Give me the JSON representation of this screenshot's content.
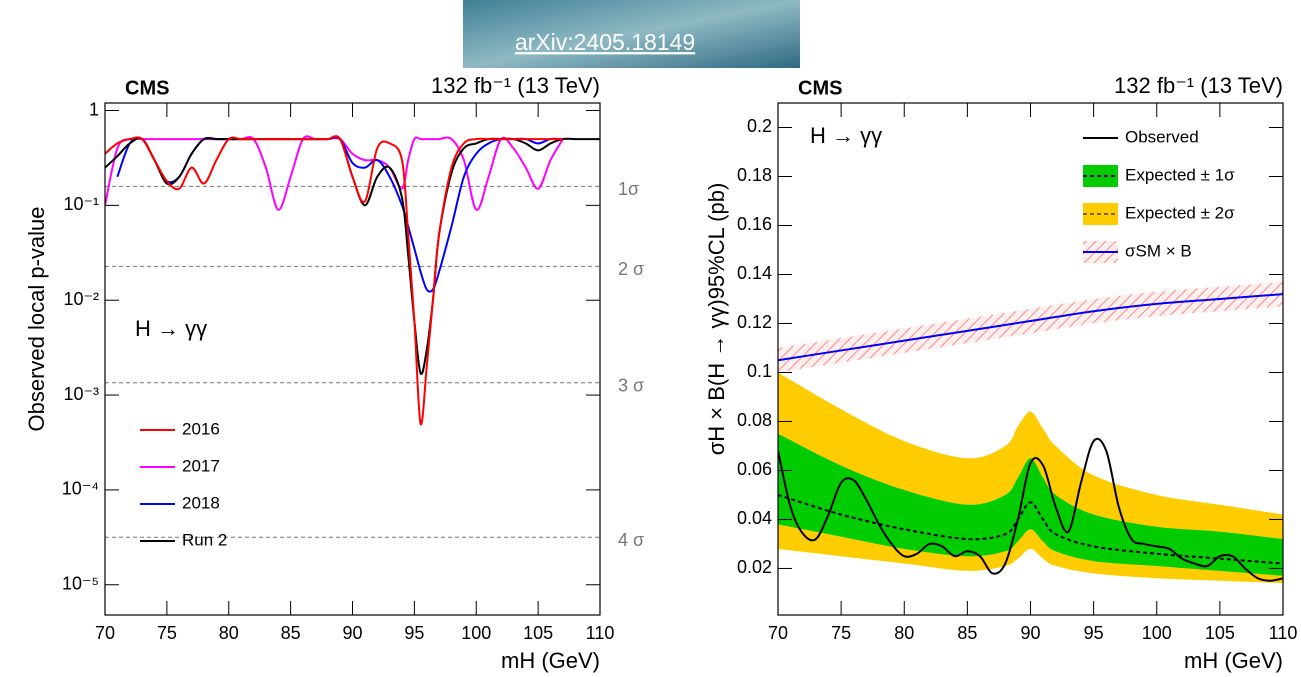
{
  "banner": {
    "text": "arXiv:2405.18149"
  },
  "chart_data": [
    {
      "type": "line",
      "log_y": true,
      "experiment": "CMS",
      "luminosity": "132 fb⁻¹ (13 TeV)",
      "x_label": "mH (GeV)",
      "y_label": "Observed local p-value",
      "annotation": "H → γγ",
      "legend": "lower left",
      "x": [
        70,
        71,
        72,
        73,
        74,
        75,
        76,
        77,
        78,
        79,
        80,
        81,
        82,
        83,
        84,
        85,
        86,
        87,
        88,
        89,
        90,
        91,
        92,
        93,
        94,
        94.5,
        95,
        95.5,
        96,
        96.5,
        97,
        98,
        99,
        100,
        101,
        102,
        103,
        104,
        105,
        106,
        107,
        108,
        109,
        110
      ],
      "xlim": [
        70,
        110
      ],
      "xticks": [
        70,
        75,
        80,
        85,
        90,
        95,
        100,
        105,
        110
      ],
      "ylim": [
        4.8e-06,
        1.2
      ],
      "yticks": [
        {
          "value": 1e-05,
          "label": "10⁻⁵"
        },
        {
          "value": 0.0001,
          "label": "10⁻⁴"
        },
        {
          "value": 0.001,
          "label": "10⁻³"
        },
        {
          "value": 0.01,
          "label": "10⁻²"
        },
        {
          "value": 0.1,
          "label": "10⁻¹"
        },
        1
      ],
      "reference_lines": [
        {
          "value": 0.1587,
          "label": "1σ"
        },
        {
          "value": 0.02275,
          "label": "2 σ"
        },
        {
          "value": 0.00135,
          "label": "3 σ"
        },
        {
          "value": 3.17e-05,
          "label": "4 σ"
        }
      ],
      "series": [
        {
          "name": "2016",
          "color": "#ff0000",
          "values": [
            0.35,
            0.45,
            0.5,
            0.5,
            0.3,
            0.18,
            0.15,
            0.25,
            0.17,
            0.3,
            0.5,
            0.5,
            0.5,
            0.5,
            0.5,
            0.5,
            0.5,
            0.5,
            0.5,
            0.5,
            0.2,
            0.11,
            0.4,
            0.45,
            0.3,
            0.05,
            0.006,
            0.0005,
            0.002,
            0.01,
            0.05,
            0.25,
            0.45,
            0.5,
            0.5,
            0.5,
            0.5,
            0.5,
            0.5,
            0.5,
            0.5,
            null,
            null,
            null
          ]
        },
        {
          "name": "2017",
          "color": "#ff00ff",
          "values": [
            0.1,
            0.4,
            0.5,
            0.5,
            0.5,
            0.5,
            0.5,
            0.5,
            0.5,
            0.5,
            0.5,
            0.5,
            0.5,
            0.25,
            0.09,
            0.2,
            0.5,
            0.5,
            0.5,
            0.5,
            0.35,
            0.3,
            0.3,
            0.25,
            0.15,
            0.3,
            0.5,
            0.5,
            0.5,
            0.5,
            0.5,
            0.5,
            0.3,
            0.09,
            0.2,
            0.5,
            0.4,
            0.25,
            0.15,
            0.3,
            0.5,
            null,
            null,
            null
          ]
        },
        {
          "name": "2018",
          "color": "#0000ff",
          "values": [
            null,
            0.2,
            0.45,
            0.5,
            0.3,
            0.18,
            0.2,
            0.35,
            0.5,
            0.5,
            0.5,
            0.5,
            0.5,
            0.5,
            0.5,
            0.5,
            0.5,
            0.5,
            0.5,
            0.5,
            0.28,
            0.25,
            0.3,
            0.2,
            0.1,
            0.06,
            0.035,
            0.02,
            0.013,
            0.013,
            0.02,
            0.06,
            0.2,
            0.35,
            0.45,
            0.5,
            0.5,
            0.5,
            0.45,
            0.5,
            0.5,
            null,
            null,
            null
          ]
        },
        {
          "name": "Run 2",
          "color": "#000000",
          "values": [
            0.25,
            0.33,
            0.45,
            0.5,
            0.3,
            0.17,
            0.2,
            0.35,
            0.5,
            0.5,
            0.5,
            0.5,
            0.5,
            0.5,
            0.5,
            0.5,
            0.5,
            0.5,
            0.5,
            0.5,
            0.2,
            0.1,
            0.2,
            0.25,
            0.12,
            0.03,
            0.006,
            0.0017,
            0.003,
            0.01,
            0.05,
            0.22,
            0.4,
            0.45,
            0.5,
            0.5,
            0.5,
            0.45,
            0.38,
            0.45,
            0.5,
            0.5,
            0.5,
            0.5
          ]
        }
      ]
    },
    {
      "type": "line",
      "log_y": false,
      "experiment": "CMS",
      "luminosity": "132 fb⁻¹ (13 TeV)",
      "x_label": "mH (GeV)",
      "y_label": "σH × B(H → γγ)95%CL (pb)",
      "annotation": "H → γγ",
      "legend": "upper right",
      "x": [
        70,
        71,
        72,
        73,
        74,
        75,
        76,
        77,
        78,
        79,
        80,
        81,
        82,
        83,
        84,
        85,
        86,
        87,
        88,
        89,
        90,
        91,
        92,
        93,
        94,
        95,
        96,
        97,
        98,
        99,
        100,
        101,
        102,
        103,
        104,
        105,
        106,
        107,
        108,
        109,
        110
      ],
      "xlim": [
        70,
        110
      ],
      "xticks": [
        70,
        75,
        80,
        85,
        90,
        95,
        100,
        105,
        110
      ],
      "ylim": [
        0.001,
        0.21
      ],
      "yticks": [
        0.02,
        0.04,
        0.06,
        0.08,
        0.1,
        0.12,
        0.14,
        0.16,
        0.18,
        0.2
      ],
      "series": [
        {
          "name": "Observed",
          "color": "#000000",
          "values": [
            0.068,
            0.045,
            0.034,
            0.032,
            0.042,
            0.055,
            0.056,
            0.048,
            0.038,
            0.03,
            0.025,
            0.026,
            0.03,
            0.029,
            0.025,
            0.027,
            0.025,
            0.018,
            0.022,
            0.04,
            0.063,
            0.062,
            0.045,
            0.035,
            0.055,
            0.072,
            0.068,
            0.045,
            0.032,
            0.03,
            0.029,
            0.028,
            0.024,
            0.022,
            0.021,
            0.025,
            0.025,
            0.02,
            0.016,
            0.015,
            0.016
          ]
        },
        {
          "name": "Expected ± 1σ",
          "color": "#00cc00",
          "line_color": "#000000",
          "dash": true,
          "x": [
            70,
            75,
            80,
            85,
            88,
            89,
            90,
            91,
            92,
            95,
            100,
            105,
            110
          ],
          "values": [
            0.05,
            0.042,
            0.036,
            0.032,
            0.034,
            0.04,
            0.047,
            0.04,
            0.034,
            0.029,
            0.026,
            0.024,
            0.022
          ],
          "lower": [
            0.038,
            0.033,
            0.028,
            0.025,
            0.027,
            0.031,
            0.036,
            0.031,
            0.027,
            0.023,
            0.021,
            0.019,
            0.017
          ],
          "upper": [
            0.075,
            0.062,
            0.052,
            0.046,
            0.05,
            0.057,
            0.065,
            0.057,
            0.05,
            0.042,
            0.037,
            0.035,
            0.032
          ]
        },
        {
          "name": "Expected ± 2σ",
          "color": "#ffcc00",
          "x": [
            70,
            75,
            80,
            85,
            88,
            89,
            90,
            91,
            92,
            95,
            100,
            105,
            110
          ],
          "lower": [
            0.028,
            0.025,
            0.022,
            0.019,
            0.021,
            0.024,
            0.028,
            0.024,
            0.021,
            0.018,
            0.016,
            0.015,
            0.014
          ],
          "upper": [
            0.1,
            0.085,
            0.072,
            0.065,
            0.07,
            0.078,
            0.084,
            0.077,
            0.07,
            0.058,
            0.05,
            0.046,
            0.042
          ]
        },
        {
          "name": "σSM × B",
          "color": "#0000ff",
          "band_color": "#ff8888",
          "hatch": true,
          "x": [
            70,
            75,
            80,
            85,
            90,
            95,
            100,
            105,
            110
          ],
          "values": [
            0.105,
            0.109,
            0.113,
            0.117,
            0.121,
            0.125,
            0.128,
            0.13,
            0.132
          ],
          "lower": [
            0.1,
            0.104,
            0.108,
            0.112,
            0.116,
            0.12,
            0.123,
            0.125,
            0.127
          ],
          "upper": [
            0.11,
            0.114,
            0.118,
            0.122,
            0.126,
            0.13,
            0.133,
            0.135,
            0.137
          ]
        }
      ]
    }
  ]
}
